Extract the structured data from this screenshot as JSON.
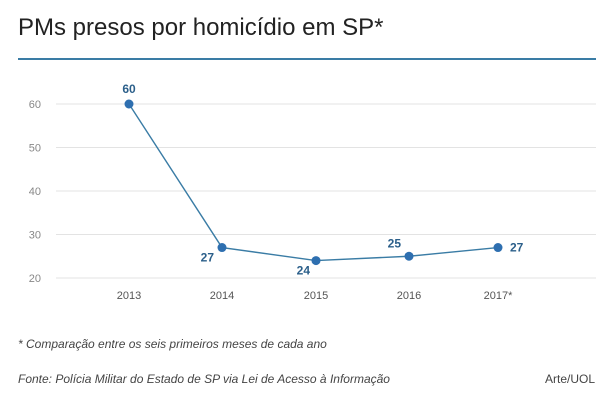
{
  "title": "PMs presos por homicídio em SP*",
  "footnote": "* Comparação entre os seis primeiros meses de cada ano",
  "source": "Fonte: Polícia Militar do Estado de SP via Lei de Acesso à Informação",
  "credit": "Arte/UOL",
  "colors": {
    "accent": "#3a7ca5",
    "line": "#3a7ca5",
    "point": "#2e6fb0",
    "grid": "#e3e3e3",
    "tick_text": "#888888",
    "label_text": "#2b5f8a"
  },
  "chart_data": {
    "type": "line",
    "title": "PMs presos por homicídio em SP*",
    "xlabel": "",
    "ylabel": "",
    "categories": [
      "2013",
      "2014",
      "2015",
      "2016",
      "2017*"
    ],
    "series": [
      {
        "values": [
          60,
          27,
          24,
          25,
          27
        ]
      }
    ],
    "data_labels": [
      "60",
      "27",
      "24",
      "25",
      "27"
    ],
    "ylim": [
      20,
      60
    ],
    "yticks": [
      20,
      30,
      40,
      50,
      60
    ],
    "grid": true,
    "legend": "none"
  }
}
